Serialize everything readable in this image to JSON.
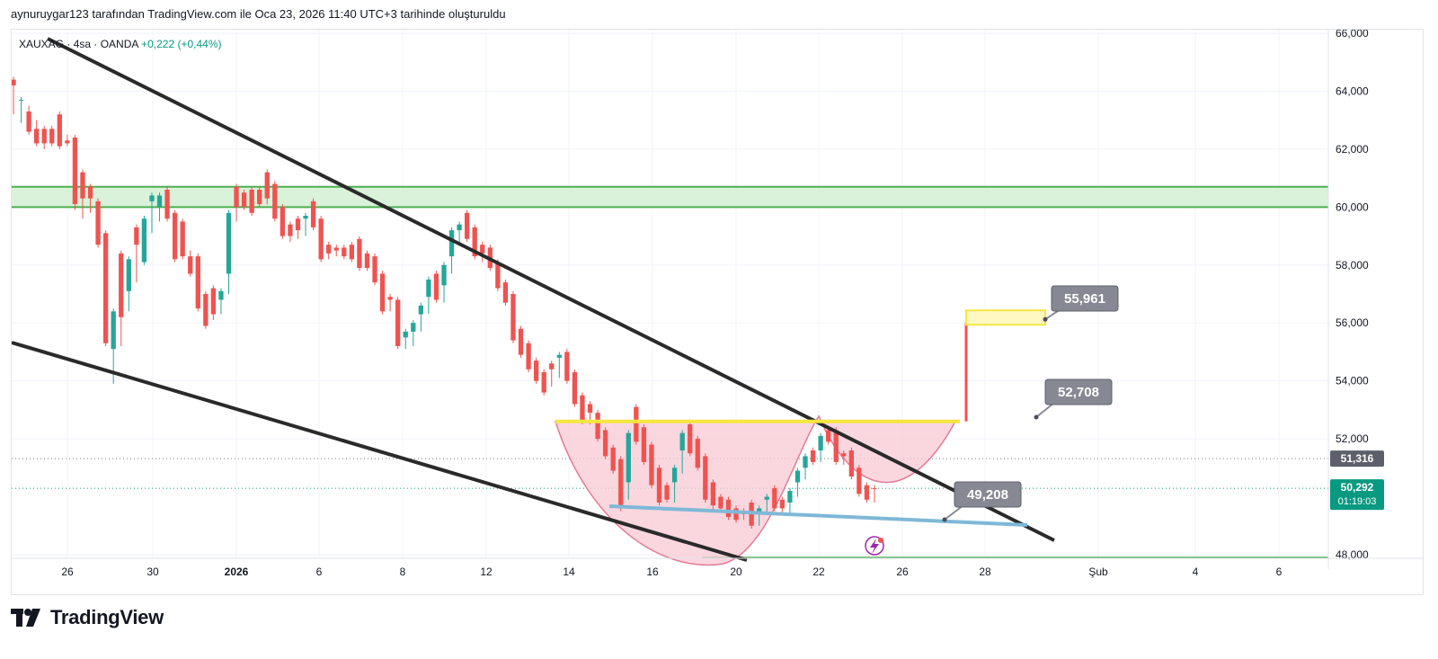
{
  "header": {
    "caption": "aynuruygar123 tarafından TradingView.com ile Oca 23, 2026 11:40 UTC+3 tarihinde oluşturuldu"
  },
  "logo": {
    "wordmark": "TradingView",
    "icon": "tradingview-logo-icon"
  },
  "colors": {
    "up": "#26a69a",
    "down": "#ef5350",
    "trendline": "#2a2a2a",
    "zone_fill": "#d9f2d9",
    "zone_border": "#4caf50",
    "neckline": "#f5e642",
    "cup_fill": "#f8c9d4",
    "cup_stroke": "#e57a96",
    "label_bg": "#868993",
    "last_price_bg": "#089981",
    "prev_close_bg": "#5d606b",
    "support_line": "#4caf50",
    "lower_support": "#7fb8d8"
  },
  "chart_data": {
    "type": "candlestick",
    "symbol": "XAUXAG",
    "interval": "4sa",
    "exchange": "OANDA",
    "change": "+0,222",
    "change_pct": "(+0,44%)",
    "y_ticks": [
      "66,000",
      "64,000",
      "62,000",
      "60,000",
      "58,000",
      "56,000",
      "54,000",
      "52,000",
      "48,000"
    ],
    "x_ticks": [
      "26",
      "30",
      "2026",
      "6",
      "8",
      "12",
      "14",
      "16",
      "20",
      "22",
      "26",
      "28",
      "Şub",
      "4",
      "6"
    ],
    "ylim": [
      47.5,
      67.0
    ],
    "last_price": {
      "value": "50,292",
      "countdown": "01:19:03"
    },
    "prev_close": "51,316",
    "resistance_zone": [
      60.0,
      60.7
    ],
    "support_level": 47.9,
    "neckline": 52.6,
    "cup_low": 48.3,
    "projection": {
      "from": 52.6,
      "to": 56.0
    },
    "labels": [
      {
        "text": "55,961",
        "price": 55.961
      },
      {
        "text": "52,708",
        "price": 52.708
      },
      {
        "text": "49,208",
        "price": 49.208
      }
    ],
    "candles": [
      [
        64.4,
        64.1,
        63.3,
        64.2
      ],
      [
        63.7,
        63.5,
        63.0,
        63.7
      ],
      [
        63.3,
        63.4,
        62.7,
        62.6
      ],
      [
        62.7,
        62.9,
        62.3,
        62.2
      ],
      [
        62.7,
        62.3,
        62.1,
        62.2
      ],
      [
        62.7,
        62.5,
        62.3,
        62.2
      ],
      [
        63.2,
        62.4,
        62.2,
        62.1
      ],
      [
        62.3,
        62.4,
        62.3,
        62.2
      ],
      [
        62.4,
        62.4,
        60.0,
        60.1
      ],
      [
        61.2,
        60.0,
        59.7,
        60.3
      ],
      [
        60.7,
        60.2,
        59.9,
        60.3
      ],
      [
        60.2,
        59.8,
        59.0,
        58.7
      ],
      [
        59.1,
        58.7,
        55.9,
        55.3
      ],
      [
        55.1,
        56.0,
        54.0,
        56.4
      ],
      [
        58.4,
        56.8,
        55.3,
        56.2
      ],
      [
        57.1,
        56.5,
        58.1,
        58.2
      ],
      [
        59.3,
        58.2,
        57.5,
        58.7
      ],
      [
        58.1,
        58.6,
        59.0,
        59.6
      ],
      [
        60.2,
        59.2,
        59.7,
        60.4
      ],
      [
        60.0,
        59.6,
        60.2,
        60.4
      ],
      [
        60.6,
        60.3,
        59.8,
        59.6
      ],
      [
        59.8,
        59.7,
        59.0,
        58.2
      ],
      [
        59.5,
        59.0,
        58.5,
        58.3
      ],
      [
        58.3,
        58.4,
        57.9,
        57.7
      ],
      [
        58.3,
        58.0,
        57.0,
        56.5
      ],
      [
        57.0,
        56.7,
        56.0,
        55.9
      ],
      [
        57.2,
        56.3,
        56.2,
        56.3
      ],
      [
        56.8,
        56.4,
        56.5,
        57.1
      ],
      [
        57.7,
        57.1,
        58.3,
        59.8
      ],
      [
        60.7,
        59.6,
        60.5,
        60.0
      ],
      [
        60.5,
        60.2,
        60.3,
        60.0
      ],
      [
        60.6,
        60.5,
        60.0,
        59.8
      ],
      [
        60.6,
        60.1,
        60.2,
        60.1
      ],
      [
        61.2,
        60.2,
        60.6,
        60.3
      ],
      [
        60.8,
        60.5,
        59.8,
        59.6
      ],
      [
        60.0,
        59.6,
        59.3,
        59.0
      ],
      [
        59.4,
        59.1,
        58.9,
        59.0
      ],
      [
        59.6,
        59.0,
        59.1,
        59.2
      ],
      [
        59.6,
        59.1,
        59.4,
        59.7
      ],
      [
        60.2,
        59.5,
        59.5,
        59.3
      ],
      [
        59.6,
        59.2,
        58.6,
        58.2
      ],
      [
        58.7,
        58.3,
        58.4,
        58.4
      ],
      [
        58.6,
        58.4,
        58.4,
        58.5
      ],
      [
        58.6,
        58.3,
        58.3,
        58.3
      ],
      [
        58.7,
        58.2,
        58.3,
        58.2
      ],
      [
        58.9,
        58.0,
        57.9,
        57.9
      ],
      [
        58.4,
        57.9,
        58.0,
        57.9
      ],
      [
        58.3,
        57.8,
        57.5,
        57.4
      ],
      [
        57.7,
        57.3,
        56.9,
        56.4
      ],
      [
        56.9,
        56.6,
        56.5,
        56.8
      ],
      [
        56.8,
        56.6,
        56.0,
        55.2
      ],
      [
        55.5,
        55.4,
        55.2,
        55.7
      ],
      [
        55.7,
        55.3,
        55.8,
        56.0
      ],
      [
        56.3,
        55.8,
        56.4,
        56.6
      ],
      [
        56.9,
        56.4,
        57.1,
        57.5
      ],
      [
        57.7,
        57.3,
        57.2,
        56.8
      ],
      [
        57.3,
        56.8,
        57.4,
        58.0
      ],
      [
        58.3,
        57.8,
        58.4,
        59.2
      ],
      [
        59.2,
        58.8,
        59.0,
        59.4
      ],
      [
        59.8,
        59.1,
        59.4,
        58.9
      ],
      [
        59.3,
        58.8,
        58.5,
        58.3
      ],
      [
        58.7,
        58.2,
        58.4,
        58.4
      ],
      [
        58.6,
        58.3,
        58.0,
        57.9
      ],
      [
        58.1,
        57.8,
        57.5,
        57.2
      ],
      [
        57.4,
        57.1,
        57.0,
        56.7
      ],
      [
        57.0,
        56.7,
        56.1,
        55.4
      ],
      [
        55.8,
        55.5,
        55.2,
        54.9
      ],
      [
        55.3,
        55.0,
        54.6,
        54.4
      ],
      [
        54.7,
        54.3,
        54.0,
        54.0
      ],
      [
        54.3,
        54.1,
        53.8,
        53.6
      ],
      [
        54.6,
        53.9,
        54.2,
        54.4
      ],
      [
        54.8,
        54.2,
        54.6,
        54.9
      ],
      [
        55.0,
        54.7,
        54.4,
        54.0
      ],
      [
        54.3,
        54.0,
        53.5,
        53.2
      ],
      [
        53.5,
        53.3,
        52.8,
        52.6
      ],
      [
        53.2,
        52.6,
        52.7,
        52.9
      ],
      [
        52.9,
        52.7,
        52.2,
        52.0
      ],
      [
        52.3,
        51.9,
        51.7,
        51.4
      ],
      [
        51.7,
        51.5,
        51.0,
        50.9
      ],
      [
        51.3,
        51.0,
        50.3,
        49.6
      ],
      [
        50.5,
        50.0,
        51.0,
        52.2
      ],
      [
        53.1,
        52.0,
        52.1,
        51.9
      ],
      [
        52.4,
        52.0,
        51.5,
        51.2
      ],
      [
        51.8,
        51.3,
        50.8,
        50.4
      ],
      [
        51.0,
        50.6,
        50.2,
        49.8
      ],
      [
        50.4,
        50.1,
        49.9,
        49.9
      ],
      [
        50.5,
        49.9,
        50.5,
        51.0
      ],
      [
        51.6,
        50.9,
        51.5,
        52.2
      ],
      [
        52.5,
        51.9,
        51.7,
        51.5
      ],
      [
        52.0,
        51.6,
        51.3,
        51.0
      ],
      [
        51.4,
        51.0,
        50.2,
        49.9
      ],
      [
        50.5,
        50.0,
        49.6,
        49.7
      ],
      [
        50.0,
        49.6,
        49.6,
        49.6
      ],
      [
        49.9,
        49.5,
        49.4,
        49.3
      ],
      [
        49.6,
        49.3,
        49.4,
        49.2
      ],
      [
        49.5,
        49.3,
        49.4,
        49.4
      ],
      [
        49.8,
        49.4,
        49.3,
        49.0
      ],
      [
        49.4,
        49.1,
        49.3,
        49.6
      ],
      [
        49.9,
        49.5,
        49.7,
        50.0
      ],
      [
        50.3,
        49.9,
        49.8,
        49.6
      ],
      [
        49.9,
        49.6,
        49.5,
        49.6
      ],
      [
        49.8,
        49.5,
        49.8,
        50.2
      ],
      [
        50.5,
        50.1,
        50.5,
        50.9
      ],
      [
        51.0,
        50.7,
        51.1,
        51.4
      ],
      [
        51.6,
        51.2,
        51.4,
        51.2
      ],
      [
        51.6,
        51.3,
        51.8,
        52.1
      ],
      [
        52.3,
        51.9,
        52.0,
        51.9
      ],
      [
        52.3,
        51.9,
        51.5,
        51.2
      ],
      [
        51.5,
        51.2,
        51.3,
        51.4
      ],
      [
        51.6,
        51.3,
        51.0,
        50.7
      ],
      [
        51.0,
        50.7,
        50.4,
        50.1
      ],
      [
        50.4,
        50.2,
        50.0,
        49.9
      ],
      [
        50.3,
        49.9,
        50.3,
        50.29
      ]
    ]
  }
}
